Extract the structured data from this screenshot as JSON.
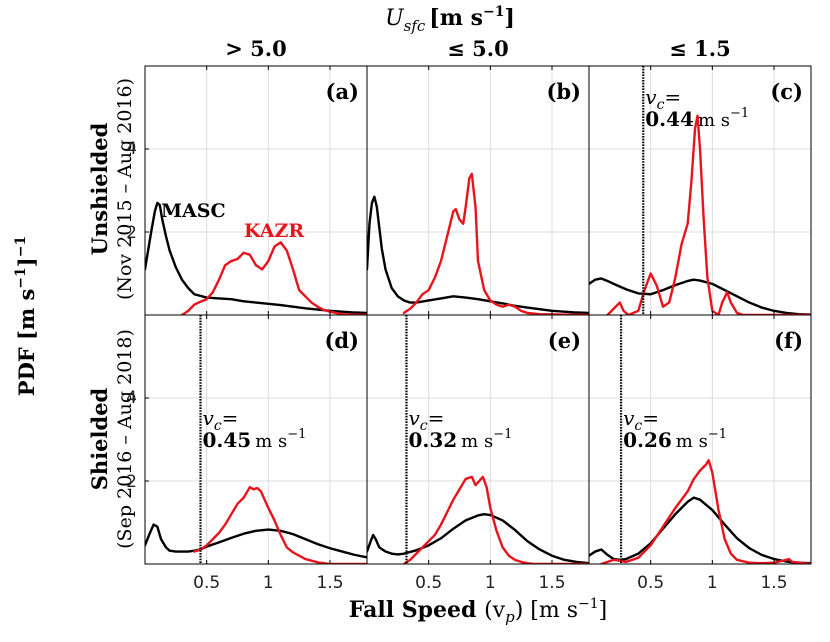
{
  "figure": {
    "top_label": "U_sfc [m s^-1]",
    "top_label_main": "U",
    "top_label_sub": "sfc",
    "top_label_units": "[m s",
    "top_label_exp": "−1",
    "top_label_close": "]",
    "column_headers": [
      "> 5.0",
      "≤ 5.0",
      "≤ 1.5"
    ],
    "row_labels": [
      {
        "main": "Unshielded",
        "sub": "(Nov 2015 – Aug 2016)"
      },
      {
        "main": "Shielded",
        "sub": "(Sep 2016 – Aug 2018)"
      }
    ],
    "ylabel": "PDF [m s^-1]^-1",
    "ylabel_parts": {
      "a": "PDF [m s",
      "exp1": "−1",
      "b": "]",
      "exp2": "−1"
    },
    "xlabel": "Fall Speed (v_p) [m s^-1]",
    "xlabel_parts": {
      "a": "Fall Speed ",
      "b": "(v",
      "sub": "p",
      "c": ") [m s",
      "exp": "−1",
      "d": "]"
    },
    "legend": {
      "masc": "MASC",
      "kazr": "KAZR"
    },
    "colors": {
      "masc": "#000000",
      "kazr": "#e8141c",
      "grid": "#dcdcdc",
      "vline": "#000000"
    }
  },
  "chart_data": {
    "type": "line",
    "xlim": [
      0,
      1.8
    ],
    "ylim": [
      0,
      6
    ],
    "xticks": [
      0.5,
      1,
      1.5
    ],
    "xtick_labels": [
      "0.5",
      "1",
      "1.5"
    ],
    "yticks": [
      2,
      4
    ],
    "ytick_labels": [
      "2",
      "4"
    ],
    "panels": [
      {
        "id": "a",
        "label": "(a)",
        "row": 0,
        "col": 0,
        "vc": null,
        "series": [
          {
            "name": "MASC",
            "x": [
              0,
              0.05,
              0.08,
              0.1,
              0.12,
              0.14,
              0.17,
              0.2,
              0.25,
              0.3,
              0.35,
              0.4,
              0.5,
              0.6,
              0.7,
              0.8,
              0.9,
              1.0,
              1.1,
              1.2,
              1.3,
              1.4,
              1.5,
              1.6,
              1.7,
              1.8
            ],
            "y": [
              1.1,
              2.0,
              2.5,
              2.7,
              2.65,
              2.3,
              1.9,
              1.55,
              1.15,
              0.85,
              0.65,
              0.5,
              0.42,
              0.4,
              0.38,
              0.33,
              0.3,
              0.27,
              0.24,
              0.2,
              0.16,
              0.13,
              0.1,
              0.08,
              0.06,
              0.05
            ]
          },
          {
            "name": "KAZR",
            "x": [
              0.3,
              0.35,
              0.4,
              0.45,
              0.5,
              0.55,
              0.6,
              0.65,
              0.7,
              0.75,
              0.8,
              0.85,
              0.9,
              0.95,
              1.0,
              1.05,
              1.1,
              1.15,
              1.2,
              1.25,
              1.3,
              1.35,
              1.4,
              1.45,
              1.5,
              1.55,
              1.6,
              1.8
            ],
            "y": [
              0.0,
              0.1,
              0.25,
              0.32,
              0.38,
              0.55,
              0.85,
              1.2,
              1.3,
              1.35,
              1.5,
              1.45,
              1.2,
              1.1,
              1.3,
              1.65,
              1.75,
              1.55,
              1.1,
              0.6,
              0.45,
              0.3,
              0.2,
              0.12,
              0.08,
              0.05,
              0.02,
              0.0
            ]
          }
        ]
      },
      {
        "id": "b",
        "label": "(b)",
        "row": 0,
        "col": 1,
        "vc": null,
        "series": [
          {
            "name": "MASC",
            "x": [
              0,
              0.02,
              0.04,
              0.06,
              0.08,
              0.1,
              0.12,
              0.15,
              0.2,
              0.25,
              0.3,
              0.35,
              0.4,
              0.5,
              0.6,
              0.7,
              0.8,
              0.9,
              1.0,
              1.1,
              1.2,
              1.3,
              1.4,
              1.5,
              1.6,
              1.7,
              1.8
            ],
            "y": [
              1.1,
              2.2,
              2.7,
              2.85,
              2.6,
              2.1,
              1.6,
              1.1,
              0.65,
              0.45,
              0.35,
              0.3,
              0.3,
              0.35,
              0.4,
              0.45,
              0.42,
              0.38,
              0.33,
              0.28,
              0.22,
              0.18,
              0.14,
              0.1,
              0.08,
              0.06,
              0.05
            ]
          },
          {
            "name": "KAZR",
            "x": [
              0.3,
              0.35,
              0.4,
              0.45,
              0.5,
              0.55,
              0.6,
              0.65,
              0.7,
              0.72,
              0.75,
              0.78,
              0.8,
              0.83,
              0.85,
              0.88,
              0.9,
              0.95,
              1.0,
              1.05,
              1.1,
              1.15,
              1.2,
              1.25,
              1.3,
              1.4,
              1.8
            ],
            "y": [
              0.05,
              0.15,
              0.3,
              0.5,
              0.6,
              0.9,
              1.3,
              1.9,
              2.5,
              2.55,
              2.3,
              2.2,
              2.6,
              3.3,
              3.4,
              2.6,
              1.3,
              0.6,
              0.35,
              0.25,
              0.2,
              0.25,
              0.2,
              0.1,
              0.05,
              0.02,
              0.0
            ]
          }
        ]
      },
      {
        "id": "c",
        "label": "(c)",
        "row": 0,
        "col": 2,
        "vc": 0.44,
        "vc_label": "v_c=",
        "vc_label_main": "v",
        "vc_label_sub": "c",
        "vc_label_eq": "=",
        "vc_value": "0.44",
        "vc_units": "m s",
        "vc_exp": "−1",
        "series": [
          {
            "name": "MASC",
            "x": [
              0,
              0.05,
              0.1,
              0.15,
              0.2,
              0.3,
              0.4,
              0.5,
              0.6,
              0.7,
              0.8,
              0.85,
              0.9,
              1.0,
              1.1,
              1.2,
              1.3,
              1.4,
              1.5,
              1.6,
              1.7,
              1.8
            ],
            "y": [
              0.75,
              0.85,
              0.88,
              0.82,
              0.75,
              0.62,
              0.52,
              0.5,
              0.6,
              0.72,
              0.82,
              0.85,
              0.83,
              0.75,
              0.6,
              0.45,
              0.3,
              0.18,
              0.1,
              0.05,
              0.02,
              0.01
            ]
          },
          {
            "name": "KAZR",
            "x": [
              0.15,
              0.2,
              0.25,
              0.28,
              0.32,
              0.4,
              0.45,
              0.5,
              0.55,
              0.6,
              0.65,
              0.7,
              0.75,
              0.8,
              0.83,
              0.86,
              0.88,
              0.9,
              0.93,
              0.96,
              1.0,
              1.05,
              1.08,
              1.12,
              1.15,
              1.2,
              1.25,
              1.8
            ],
            "y": [
              0.0,
              0.15,
              0.3,
              0.1,
              0.0,
              0.1,
              0.6,
              1.0,
              0.7,
              0.2,
              0.3,
              0.9,
              1.7,
              2.2,
              3.2,
              4.5,
              4.8,
              4.0,
              2.3,
              0.9,
              0.1,
              0.0,
              0.3,
              0.55,
              0.3,
              0.05,
              0.0,
              0.0
            ]
          }
        ]
      },
      {
        "id": "d",
        "label": "(d)",
        "row": 1,
        "col": 0,
        "vc": 0.45,
        "vc_label": "v_c=",
        "vc_label_main": "v",
        "vc_label_sub": "c",
        "vc_label_eq": "=",
        "vc_value": "0.45",
        "vc_units": "m s",
        "vc_exp": "−1",
        "series": [
          {
            "name": "MASC",
            "x": [
              0,
              0.04,
              0.07,
              0.1,
              0.13,
              0.17,
              0.2,
              0.25,
              0.3,
              0.35,
              0.4,
              0.45,
              0.5,
              0.6,
              0.7,
              0.8,
              0.9,
              1.0,
              1.1,
              1.2,
              1.3,
              1.4,
              1.5,
              1.6,
              1.7,
              1.8
            ],
            "y": [
              0.45,
              0.75,
              0.95,
              0.9,
              0.6,
              0.4,
              0.32,
              0.3,
              0.3,
              0.3,
              0.32,
              0.35,
              0.42,
              0.52,
              0.63,
              0.73,
              0.8,
              0.83,
              0.8,
              0.72,
              0.6,
              0.48,
              0.38,
              0.3,
              0.22,
              0.16
            ]
          },
          {
            "name": "KAZR",
            "x": [
              0.4,
              0.45,
              0.5,
              0.55,
              0.6,
              0.65,
              0.7,
              0.75,
              0.8,
              0.85,
              0.88,
              0.91,
              0.94,
              0.97,
              1.0,
              1.05,
              1.1,
              1.15,
              1.2,
              1.25,
              1.3,
              1.35,
              1.4,
              1.45,
              1.5,
              1.8
            ],
            "y": [
              0.3,
              0.35,
              0.45,
              0.6,
              0.75,
              0.95,
              1.2,
              1.45,
              1.6,
              1.85,
              1.8,
              1.83,
              1.75,
              1.55,
              1.35,
              1.05,
              0.7,
              0.4,
              0.28,
              0.2,
              0.12,
              0.08,
              0.04,
              0.02,
              0.0,
              0.0
            ]
          }
        ]
      },
      {
        "id": "e",
        "label": "(e)",
        "row": 1,
        "col": 1,
        "vc": 0.32,
        "vc_label": "v_c=",
        "vc_label_main": "v",
        "vc_label_sub": "c",
        "vc_label_eq": "=",
        "vc_value": "0.32",
        "vc_units": "m s",
        "vc_exp": "−1",
        "series": [
          {
            "name": "MASC",
            "x": [
              0,
              0.03,
              0.05,
              0.07,
              0.1,
              0.15,
              0.2,
              0.25,
              0.3,
              0.4,
              0.5,
              0.6,
              0.7,
              0.8,
              0.9,
              0.95,
              1.0,
              1.1,
              1.2,
              1.3,
              1.4,
              1.5,
              1.6,
              1.7,
              1.8
            ],
            "y": [
              0.3,
              0.55,
              0.7,
              0.6,
              0.4,
              0.3,
              0.25,
              0.23,
              0.25,
              0.33,
              0.45,
              0.62,
              0.85,
              1.05,
              1.17,
              1.2,
              1.18,
              1.05,
              0.82,
              0.55,
              0.35,
              0.2,
              0.1,
              0.05,
              0.02
            ]
          },
          {
            "name": "KAZR",
            "x": [
              0.3,
              0.35,
              0.4,
              0.45,
              0.5,
              0.55,
              0.6,
              0.65,
              0.7,
              0.75,
              0.8,
              0.85,
              0.88,
              0.91,
              0.94,
              0.97,
              1.0,
              1.05,
              1.1,
              1.15,
              1.2,
              1.25,
              1.3,
              1.35,
              1.4,
              1.8
            ],
            "y": [
              0.0,
              0.1,
              0.25,
              0.4,
              0.55,
              0.7,
              0.95,
              1.25,
              1.55,
              1.8,
              2.05,
              2.1,
              1.9,
              2.0,
              2.1,
              1.85,
              1.35,
              0.8,
              0.4,
              0.2,
              0.1,
              0.05,
              0.02,
              0.0,
              0.0,
              0.0
            ]
          }
        ]
      },
      {
        "id": "f",
        "label": "(f)",
        "row": 1,
        "col": 2,
        "vc": 0.26,
        "vc_label": "v_c=",
        "vc_label_main": "v",
        "vc_label_sub": "c",
        "vc_label_eq": "=",
        "vc_value": "0.26",
        "vc_units": "m s",
        "vc_exp": "−1",
        "series": [
          {
            "name": "MASC",
            "x": [
              0,
              0.05,
              0.1,
              0.15,
              0.2,
              0.25,
              0.3,
              0.4,
              0.5,
              0.6,
              0.7,
              0.8,
              0.85,
              0.9,
              1.0,
              1.1,
              1.2,
              1.3,
              1.4,
              1.5,
              1.6,
              1.7,
              1.8
            ],
            "y": [
              0.2,
              0.3,
              0.35,
              0.22,
              0.12,
              0.1,
              0.12,
              0.25,
              0.5,
              0.85,
              1.2,
              1.5,
              1.6,
              1.55,
              1.3,
              0.95,
              0.62,
              0.38,
              0.22,
              0.12,
              0.06,
              0.03,
              0.02
            ]
          },
          {
            "name": "KAZR",
            "x": [
              0.1,
              0.15,
              0.2,
              0.25,
              0.3,
              0.4,
              0.5,
              0.6,
              0.7,
              0.75,
              0.8,
              0.85,
              0.9,
              0.95,
              0.97,
              1.0,
              1.05,
              1.1,
              1.15,
              1.2,
              1.3,
              1.4,
              1.5,
              1.6,
              1.62,
              1.65,
              1.8
            ],
            "y": [
              0.0,
              0.05,
              0.1,
              0.08,
              0.05,
              0.15,
              0.45,
              0.9,
              1.35,
              1.55,
              1.75,
              2.05,
              2.25,
              2.4,
              2.5,
              2.2,
              1.3,
              0.6,
              0.25,
              0.1,
              0.03,
              0.02,
              0.03,
              0.1,
              0.12,
              0.05,
              0.0
            ]
          }
        ]
      }
    ]
  }
}
